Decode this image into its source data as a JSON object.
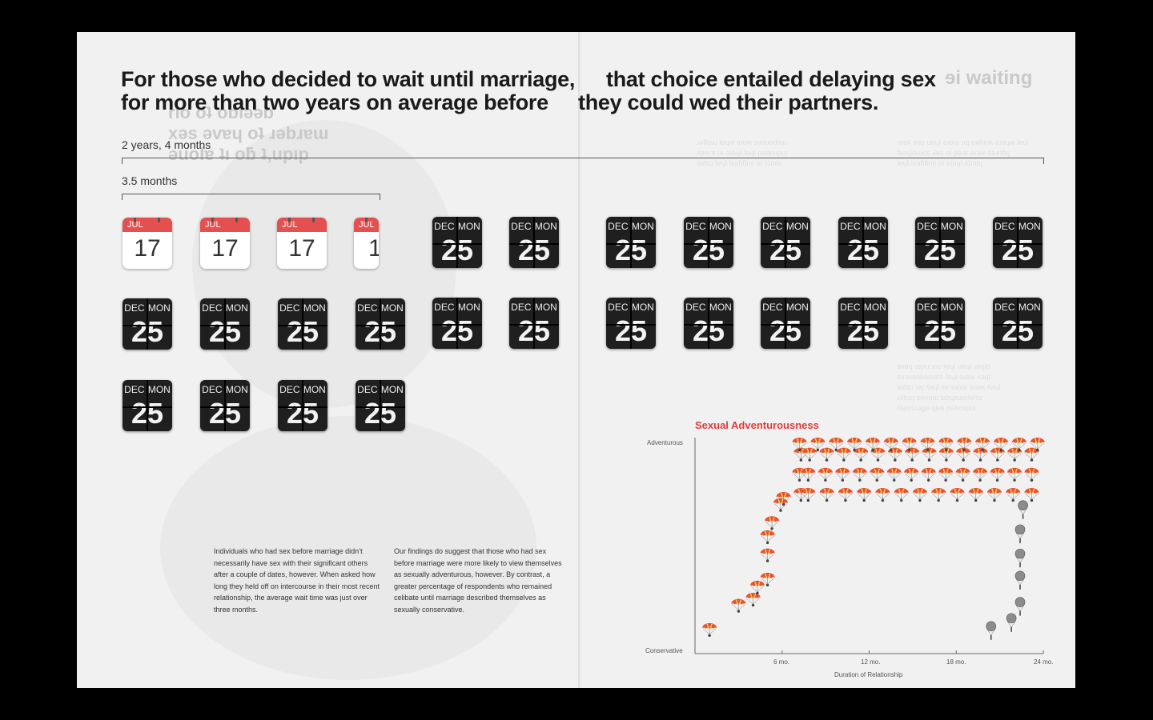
{
  "headline": {
    "left_line1": "For those who decided to wait until marriage,",
    "left_line2": "for more than two years on average before",
    "right_line1": "that choice entailed delaying sex",
    "right_line2": "they could wed their partners."
  },
  "bars": {
    "long_label": "2 years, 4 months",
    "short_label": "3.5 months"
  },
  "calendars": {
    "jul_month": "JUL",
    "jul_day": "17",
    "dec_month": "DEC",
    "dec_weekday": "MON",
    "dec_day": "25"
  },
  "body_left": "Individuals who had sex before marriage didn’t necessarily have sex with their significant others after a couple of dates, however. When asked how long they held off on intercourse in their most recent relationship, the average wait time was just over three months.",
  "body_right": "Our findings do suggest that those who had sex before marriage were more likely to view themselves as sexually adventurous, however. By contrast, a greater percentage of respondents who remained celibate until marriage described themselves as sexually conservative.",
  "chart_data": {
    "type": "scatter",
    "title": "Sexual Adventurousness",
    "xlabel": "Duration of Relationship",
    "ylabel": "",
    "x_ticks": [
      "6 mo.",
      "12 mo.",
      "18 mo.",
      "24 mo."
    ],
    "y_ticks": [
      "Adventurous",
      "Conservative"
    ],
    "xlim": [
      0,
      24
    ],
    "ylim": [
      0,
      1
    ],
    "series": [
      {
        "name": "",
        "marker": "red-parachute-icon",
        "color": "#e8542d",
        "points": [
          {
            "x": 1.0,
            "y": 0.08
          },
          {
            "x": 3.0,
            "y": 0.2
          },
          {
            "x": 4.0,
            "y": 0.23
          },
          {
            "x": 4.3,
            "y": 0.29
          },
          {
            "x": 5.0,
            "y": 0.33
          },
          {
            "x": 5.0,
            "y": 0.45
          },
          {
            "x": 5.0,
            "y": 0.54
          },
          {
            "x": 5.3,
            "y": 0.61
          },
          {
            "x": 5.9,
            "y": 0.7
          },
          {
            "x": 6.1,
            "y": 0.73
          },
          {
            "x": 7.3,
            "y": 0.75
          },
          {
            "x": 7.2,
            "y": 0.85
          },
          {
            "x": 7.3,
            "y": 0.95
          }
        ],
        "rows": [
          {
            "y": 0.75,
            "x_start": 7.8,
            "x_end": 23.2,
            "count": 13
          },
          {
            "y": 0.85,
            "x_start": 7.8,
            "x_end": 23.2,
            "count": 14
          },
          {
            "y": 0.95,
            "x_start": 7.9,
            "x_end": 23.2,
            "count": 14
          },
          {
            "y": 1.0,
            "x_start": 7.2,
            "x_end": 23.6,
            "count": 14
          }
        ]
      },
      {
        "name": "",
        "marker": "grey-parachute-icon",
        "color": "#888888",
        "points": [
          {
            "x": 20.4,
            "y": 0.08
          },
          {
            "x": 21.8,
            "y": 0.12
          },
          {
            "x": 22.4,
            "y": 0.2
          },
          {
            "x": 22.4,
            "y": 0.33
          },
          {
            "x": 22.4,
            "y": 0.44
          },
          {
            "x": 22.4,
            "y": 0.56
          },
          {
            "x": 22.6,
            "y": 0.68
          }
        ]
      }
    ],
    "grid": false,
    "legend": "none"
  }
}
